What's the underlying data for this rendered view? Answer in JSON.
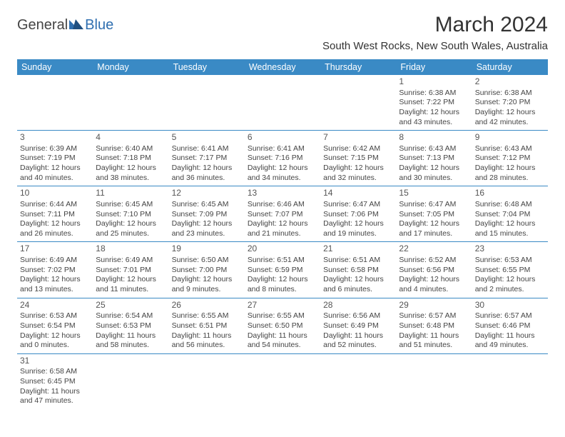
{
  "logo": {
    "textA": "General",
    "textB": "Blue"
  },
  "title": "March 2024",
  "location": "South West Rocks, New South Wales, Australia",
  "dayHeaders": [
    "Sunday",
    "Monday",
    "Tuesday",
    "Wednesday",
    "Thursday",
    "Friday",
    "Saturday"
  ],
  "style": {
    "headerBg": "#3a8ac5",
    "headerText": "#ffffff",
    "ruleColor": "#3a8ac5",
    "bodyText": "#444444",
    "titleFontSize": 30,
    "locationFontSize": 15,
    "cellFontSize": 10.5,
    "pageWidth": 792,
    "pageHeight": 612
  },
  "weeks": [
    [
      null,
      null,
      null,
      null,
      null,
      {
        "n": "1",
        "sr": "Sunrise: 6:38 AM",
        "ss": "Sunset: 7:22 PM",
        "d1": "Daylight: 12 hours",
        "d2": "and 43 minutes."
      },
      {
        "n": "2",
        "sr": "Sunrise: 6:38 AM",
        "ss": "Sunset: 7:20 PM",
        "d1": "Daylight: 12 hours",
        "d2": "and 42 minutes."
      }
    ],
    [
      {
        "n": "3",
        "sr": "Sunrise: 6:39 AM",
        "ss": "Sunset: 7:19 PM",
        "d1": "Daylight: 12 hours",
        "d2": "and 40 minutes."
      },
      {
        "n": "4",
        "sr": "Sunrise: 6:40 AM",
        "ss": "Sunset: 7:18 PM",
        "d1": "Daylight: 12 hours",
        "d2": "and 38 minutes."
      },
      {
        "n": "5",
        "sr": "Sunrise: 6:41 AM",
        "ss": "Sunset: 7:17 PM",
        "d1": "Daylight: 12 hours",
        "d2": "and 36 minutes."
      },
      {
        "n": "6",
        "sr": "Sunrise: 6:41 AM",
        "ss": "Sunset: 7:16 PM",
        "d1": "Daylight: 12 hours",
        "d2": "and 34 minutes."
      },
      {
        "n": "7",
        "sr": "Sunrise: 6:42 AM",
        "ss": "Sunset: 7:15 PM",
        "d1": "Daylight: 12 hours",
        "d2": "and 32 minutes."
      },
      {
        "n": "8",
        "sr": "Sunrise: 6:43 AM",
        "ss": "Sunset: 7:13 PM",
        "d1": "Daylight: 12 hours",
        "d2": "and 30 minutes."
      },
      {
        "n": "9",
        "sr": "Sunrise: 6:43 AM",
        "ss": "Sunset: 7:12 PM",
        "d1": "Daylight: 12 hours",
        "d2": "and 28 minutes."
      }
    ],
    [
      {
        "n": "10",
        "sr": "Sunrise: 6:44 AM",
        "ss": "Sunset: 7:11 PM",
        "d1": "Daylight: 12 hours",
        "d2": "and 26 minutes."
      },
      {
        "n": "11",
        "sr": "Sunrise: 6:45 AM",
        "ss": "Sunset: 7:10 PM",
        "d1": "Daylight: 12 hours",
        "d2": "and 25 minutes."
      },
      {
        "n": "12",
        "sr": "Sunrise: 6:45 AM",
        "ss": "Sunset: 7:09 PM",
        "d1": "Daylight: 12 hours",
        "d2": "and 23 minutes."
      },
      {
        "n": "13",
        "sr": "Sunrise: 6:46 AM",
        "ss": "Sunset: 7:07 PM",
        "d1": "Daylight: 12 hours",
        "d2": "and 21 minutes."
      },
      {
        "n": "14",
        "sr": "Sunrise: 6:47 AM",
        "ss": "Sunset: 7:06 PM",
        "d1": "Daylight: 12 hours",
        "d2": "and 19 minutes."
      },
      {
        "n": "15",
        "sr": "Sunrise: 6:47 AM",
        "ss": "Sunset: 7:05 PM",
        "d1": "Daylight: 12 hours",
        "d2": "and 17 minutes."
      },
      {
        "n": "16",
        "sr": "Sunrise: 6:48 AM",
        "ss": "Sunset: 7:04 PM",
        "d1": "Daylight: 12 hours",
        "d2": "and 15 minutes."
      }
    ],
    [
      {
        "n": "17",
        "sr": "Sunrise: 6:49 AM",
        "ss": "Sunset: 7:02 PM",
        "d1": "Daylight: 12 hours",
        "d2": "and 13 minutes."
      },
      {
        "n": "18",
        "sr": "Sunrise: 6:49 AM",
        "ss": "Sunset: 7:01 PM",
        "d1": "Daylight: 12 hours",
        "d2": "and 11 minutes."
      },
      {
        "n": "19",
        "sr": "Sunrise: 6:50 AM",
        "ss": "Sunset: 7:00 PM",
        "d1": "Daylight: 12 hours",
        "d2": "and 9 minutes."
      },
      {
        "n": "20",
        "sr": "Sunrise: 6:51 AM",
        "ss": "Sunset: 6:59 PM",
        "d1": "Daylight: 12 hours",
        "d2": "and 8 minutes."
      },
      {
        "n": "21",
        "sr": "Sunrise: 6:51 AM",
        "ss": "Sunset: 6:58 PM",
        "d1": "Daylight: 12 hours",
        "d2": "and 6 minutes."
      },
      {
        "n": "22",
        "sr": "Sunrise: 6:52 AM",
        "ss": "Sunset: 6:56 PM",
        "d1": "Daylight: 12 hours",
        "d2": "and 4 minutes."
      },
      {
        "n": "23",
        "sr": "Sunrise: 6:53 AM",
        "ss": "Sunset: 6:55 PM",
        "d1": "Daylight: 12 hours",
        "d2": "and 2 minutes."
      }
    ],
    [
      {
        "n": "24",
        "sr": "Sunrise: 6:53 AM",
        "ss": "Sunset: 6:54 PM",
        "d1": "Daylight: 12 hours",
        "d2": "and 0 minutes."
      },
      {
        "n": "25",
        "sr": "Sunrise: 6:54 AM",
        "ss": "Sunset: 6:53 PM",
        "d1": "Daylight: 11 hours",
        "d2": "and 58 minutes."
      },
      {
        "n": "26",
        "sr": "Sunrise: 6:55 AM",
        "ss": "Sunset: 6:51 PM",
        "d1": "Daylight: 11 hours",
        "d2": "and 56 minutes."
      },
      {
        "n": "27",
        "sr": "Sunrise: 6:55 AM",
        "ss": "Sunset: 6:50 PM",
        "d1": "Daylight: 11 hours",
        "d2": "and 54 minutes."
      },
      {
        "n": "28",
        "sr": "Sunrise: 6:56 AM",
        "ss": "Sunset: 6:49 PM",
        "d1": "Daylight: 11 hours",
        "d2": "and 52 minutes."
      },
      {
        "n": "29",
        "sr": "Sunrise: 6:57 AM",
        "ss": "Sunset: 6:48 PM",
        "d1": "Daylight: 11 hours",
        "d2": "and 51 minutes."
      },
      {
        "n": "30",
        "sr": "Sunrise: 6:57 AM",
        "ss": "Sunset: 6:46 PM",
        "d1": "Daylight: 11 hours",
        "d2": "and 49 minutes."
      }
    ],
    [
      {
        "n": "31",
        "sr": "Sunrise: 6:58 AM",
        "ss": "Sunset: 6:45 PM",
        "d1": "Daylight: 11 hours",
        "d2": "and 47 minutes."
      },
      null,
      null,
      null,
      null,
      null,
      null
    ]
  ]
}
